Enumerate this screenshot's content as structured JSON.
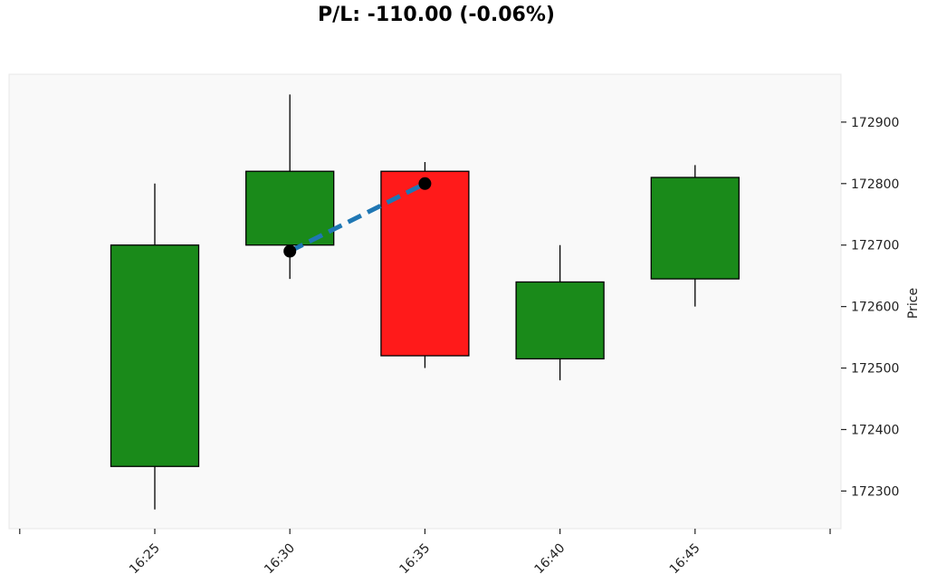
{
  "chart_data": {
    "type": "candlestick",
    "title": "P/L: -110.00 (-0.06%)",
    "ylabel": "Price",
    "ylim": [
      172240,
      172980
    ],
    "y_ticks": [
      172300,
      172400,
      172500,
      172600,
      172700,
      172800,
      172900
    ],
    "x_ticks": [
      "16:25",
      "16:30",
      "16:35",
      "16:40",
      "16:45"
    ],
    "candles": [
      {
        "time": "16:25",
        "open": 172340,
        "high": 172800,
        "low": 172270,
        "close": 172700
      },
      {
        "time": "16:30",
        "open": 172700,
        "high": 172945,
        "low": 172645,
        "close": 172820
      },
      {
        "time": "16:35",
        "open": 172820,
        "high": 172835,
        "low": 172500,
        "close": 172520
      },
      {
        "time": "16:40",
        "open": 172515,
        "high": 172700,
        "low": 172480,
        "close": 172640
      },
      {
        "time": "16:45",
        "open": 172645,
        "high": 172830,
        "low": 172600,
        "close": 172810
      }
    ],
    "trade": {
      "entry": {
        "time": "16:30",
        "price": 172690
      },
      "exit": {
        "time": "16:35",
        "price": 172800
      }
    },
    "colors": {
      "up": "#1a8a1a",
      "down": "#ff1a1a",
      "trade_line": "#1f77b4",
      "background": "#f9f9f9"
    },
    "grid": false
  }
}
